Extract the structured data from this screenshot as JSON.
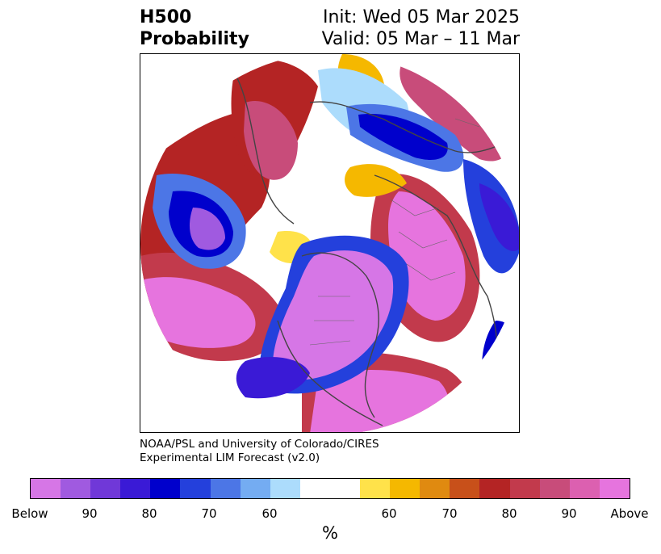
{
  "title": {
    "left_line1": "H500",
    "left_line2": "Probability",
    "right_line1": "Init: Wed 05 Mar 2025",
    "right_line2": "Valid: 05 Mar – 11 Mar"
  },
  "credit": {
    "line1": "NOAA/PSL and University of Colorado/CIRES",
    "line2": "Experimental LIM Forecast (v2.0)"
  },
  "colorbar": {
    "unit": "%",
    "colors": [
      "#d676e6",
      "#a05ae0",
      "#7038d8",
      "#3a1ad6",
      "#0000cc",
      "#2440dc",
      "#4c76e6",
      "#74acf2",
      "#acdcfc",
      "#ffffff",
      "#ffe24a",
      "#f5b800",
      "#e08a10",
      "#c8501a",
      "#b42424",
      "#c23a4c",
      "#c84c7a",
      "#dc60b0",
      "#e674de"
    ],
    "labels": [
      "Below",
      "90",
      "80",
      "70",
      "60",
      "60",
      "70",
      "80",
      "90",
      "Above"
    ]
  }
}
